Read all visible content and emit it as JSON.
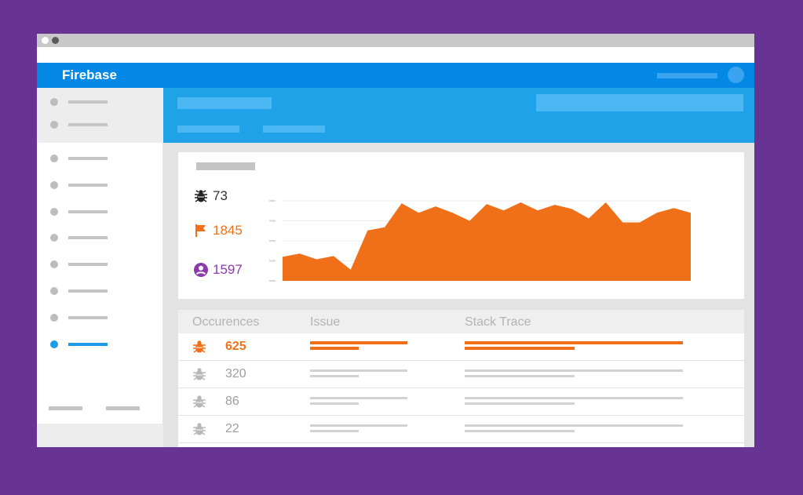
{
  "app": {
    "brand": "Firebase"
  },
  "colors": {
    "accent": "#f0701a",
    "primary": "#0388e5",
    "user": "#8b3aab",
    "background": "#683493"
  },
  "sidebar": {
    "active_index": 7
  },
  "stats": {
    "bugs": {
      "icon": "bug-icon",
      "value": "73"
    },
    "flags": {
      "icon": "flag-icon",
      "value": "1845"
    },
    "users": {
      "icon": "user-icon",
      "value": "1597"
    }
  },
  "chart_data": {
    "type": "area",
    "title": "",
    "series": [
      {
        "values": [
          0.3,
          0.34,
          0.27,
          0.31,
          0.14,
          0.63,
          0.67,
          0.97,
          0.85,
          0.93,
          0.85,
          0.75,
          0.96,
          0.88,
          0.98,
          0.88,
          0.95,
          0.9,
          0.78,
          0.98,
          0.73,
          0.73,
          0.85,
          0.91,
          0.85
        ]
      }
    ],
    "color": "#f0701a",
    "grid": true
  },
  "table": {
    "headers": {
      "occurrences": "Occurences",
      "issue": "Issue",
      "stack": "Stack Trace"
    },
    "rows": [
      {
        "count": "625",
        "highlighted": true
      },
      {
        "count": "320",
        "highlighted": false
      },
      {
        "count": "86",
        "highlighted": false
      },
      {
        "count": "22",
        "highlighted": false
      }
    ]
  }
}
